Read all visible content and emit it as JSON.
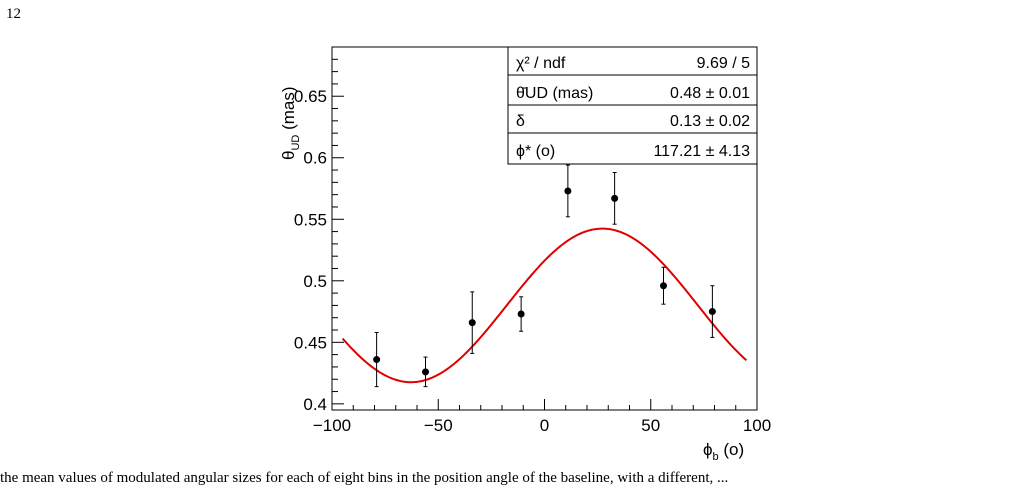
{
  "page": {
    "number": "12",
    "caption": "the mean values of modulated angular sizes for each of eight bins in the position angle of the baseline, with a different, ..."
  },
  "chart_data": {
    "type": "scatter",
    "title": "",
    "xlabel": "ϕ",
    "xlabel_sub": "b",
    "xlabel_unit": "(o)",
    "ylabel": "θ",
    "ylabel_sub": "UD",
    "ylabel_unit": "(mas)",
    "xlim": [
      -100,
      100
    ],
    "ylim": [
      0.395,
      0.69
    ],
    "xticks": [
      -100,
      -50,
      0,
      50,
      100
    ],
    "xtick_labels": [
      "−100",
      "−50",
      "0",
      "50",
      "100"
    ],
    "yticks": [
      0.4,
      0.45,
      0.5,
      0.55,
      0.6,
      0.65
    ],
    "ytick_labels": [
      "0.4",
      "0.45",
      "0.5",
      "0.55",
      "0.6",
      "0.65"
    ],
    "grid": false,
    "points": [
      {
        "x": -79,
        "y": 0.436,
        "err": 0.022
      },
      {
        "x": -56,
        "y": 0.426,
        "err": 0.012
      },
      {
        "x": -34,
        "y": 0.466,
        "err": 0.025
      },
      {
        "x": -11,
        "y": 0.473,
        "err": 0.014
      },
      {
        "x": 11,
        "y": 0.573,
        "err": 0.021
      },
      {
        "x": 33,
        "y": 0.567,
        "err": 0.021
      },
      {
        "x": 56,
        "y": 0.496,
        "err": 0.015
      },
      {
        "x": 79,
        "y": 0.475,
        "err": 0.021
      }
    ],
    "fit": {
      "color": "#e00000",
      "x_range": [
        -95,
        95
      ],
      "theta": 0.48,
      "delta": 0.13,
      "phi_star": 117.21
    },
    "stats_box": {
      "position": "top-right",
      "rows": [
        {
          "label": "χ² / ndf",
          "value": "9.69 / 5"
        },
        {
          "label": "θ̄UD (mas)",
          "value": "0.48 ± 0.01"
        },
        {
          "label": "δ",
          "value": "0.13 ± 0.02"
        },
        {
          "label": "ϕ* (o)",
          "value": "117.21 ± 4.13"
        }
      ]
    }
  }
}
